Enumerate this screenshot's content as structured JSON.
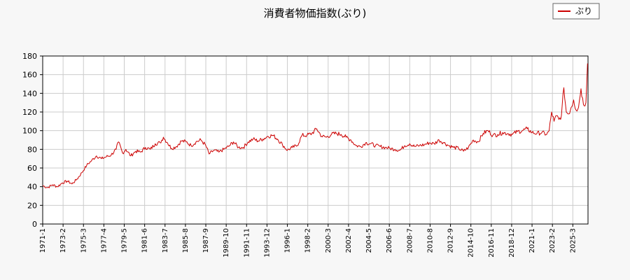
{
  "chart_data": {
    "type": "line",
    "title": "消費者物価指数(ぶり)",
    "xlabel": "",
    "ylabel": "",
    "ylim": [
      0,
      180
    ],
    "y_ticks": [
      0,
      20,
      40,
      60,
      80,
      100,
      120,
      140,
      160,
      180
    ],
    "x_ticks": [
      "1971-1",
      "1973-2",
      "1975-3",
      "1977-4",
      "1979-5",
      "1981-6",
      "1983-7",
      "1985-8",
      "1987-9",
      "1989-10",
      "1991-11",
      "1993-12",
      "1996-1",
      "1998-2",
      "2000-3",
      "2002-4",
      "2004-5",
      "2006-6",
      "2008-7",
      "2010-8",
      "2012-9",
      "2014-10",
      "2016-11",
      "2018-12",
      "2021-1",
      "2023-2",
      "2025-3"
    ],
    "grid": true,
    "legend_position": "top-right",
    "series": [
      {
        "name": "ぶり",
        "color": "#cc0000",
        "points": [
          [
            "1971-1",
            41
          ],
          [
            "1971-7",
            39
          ],
          [
            "1972-1",
            42
          ],
          [
            "1972-7",
            40
          ],
          [
            "1973-1",
            44
          ],
          [
            "1973-7",
            46
          ],
          [
            "1974-1",
            43
          ],
          [
            "1974-7",
            48
          ],
          [
            "1975-1",
            55
          ],
          [
            "1975-7",
            63
          ],
          [
            "1976-1",
            68
          ],
          [
            "1976-7",
            73
          ],
          [
            "1977-1",
            70
          ],
          [
            "1977-7",
            72
          ],
          [
            "1978-1",
            74
          ],
          [
            "1978-7",
            80
          ],
          [
            "1978-10",
            88
          ],
          [
            "1979-3",
            76
          ],
          [
            "1979-7",
            80
          ],
          [
            "1980-1",
            73
          ],
          [
            "1980-7",
            78
          ],
          [
            "1981-1",
            77
          ],
          [
            "1981-7",
            82
          ],
          [
            "1982-1",
            80
          ],
          [
            "1982-7",
            86
          ],
          [
            "1983-1",
            87
          ],
          [
            "1983-5",
            93
          ],
          [
            "1983-10",
            87
          ],
          [
            "1984-3",
            81
          ],
          [
            "1984-9",
            83
          ],
          [
            "1985-3",
            89
          ],
          [
            "1985-9",
            88
          ],
          [
            "1986-3",
            84
          ],
          [
            "1986-9",
            88
          ],
          [
            "1987-3",
            90
          ],
          [
            "1987-9",
            84
          ],
          [
            "1988-1",
            75
          ],
          [
            "1988-7",
            79
          ],
          [
            "1989-1",
            77
          ],
          [
            "1989-7",
            80
          ],
          [
            "1990-1",
            83
          ],
          [
            "1990-7",
            88
          ],
          [
            "1991-1",
            82
          ],
          [
            "1991-7",
            82
          ],
          [
            "1992-1",
            88
          ],
          [
            "1992-7",
            91
          ],
          [
            "1993-1",
            89
          ],
          [
            "1993-7",
            91
          ],
          [
            "1994-1",
            94
          ],
          [
            "1994-7",
            95
          ],
          [
            "1995-1",
            91
          ],
          [
            "1995-7",
            85
          ],
          [
            "1996-1",
            79
          ],
          [
            "1996-7",
            82
          ],
          [
            "1997-1",
            84
          ],
          [
            "1997-7",
            95
          ],
          [
            "1998-1",
            95
          ],
          [
            "1998-7",
            97
          ],
          [
            "1999-1",
            102
          ],
          [
            "1999-7",
            94
          ],
          [
            "2000-1",
            93
          ],
          [
            "2000-7",
            96
          ],
          [
            "2001-1",
            97
          ],
          [
            "2001-7",
            96
          ],
          [
            "2002-1",
            93
          ],
          [
            "2002-7",
            90
          ],
          [
            "2003-1",
            84
          ],
          [
            "2003-7",
            83
          ],
          [
            "2004-1",
            87
          ],
          [
            "2004-7",
            86
          ],
          [
            "2005-1",
            84
          ],
          [
            "2005-7",
            83
          ],
          [
            "2006-1",
            82
          ],
          [
            "2006-7",
            81
          ],
          [
            "2007-1",
            80
          ],
          [
            "2007-7",
            79
          ],
          [
            "2008-1",
            84
          ],
          [
            "2008-7",
            86
          ],
          [
            "2009-1",
            83
          ],
          [
            "2009-7",
            84
          ],
          [
            "2010-1",
            85
          ],
          [
            "2010-7",
            87
          ],
          [
            "2011-1",
            86
          ],
          [
            "2011-7",
            90
          ],
          [
            "2012-1",
            87
          ],
          [
            "2012-7",
            84
          ],
          [
            "2013-1",
            82
          ],
          [
            "2013-7",
            81
          ],
          [
            "2014-1",
            78
          ],
          [
            "2014-7",
            82
          ],
          [
            "2015-1",
            90
          ],
          [
            "2015-7",
            88
          ],
          [
            "2016-1",
            97
          ],
          [
            "2016-7",
            100
          ],
          [
            "2017-1",
            95
          ],
          [
            "2017-7",
            96
          ],
          [
            "2018-1",
            98
          ],
          [
            "2018-7",
            97
          ],
          [
            "2019-1",
            96
          ],
          [
            "2019-7",
            99
          ],
          [
            "2020-1",
            100
          ],
          [
            "2020-7",
            102
          ],
          [
            "2021-1",
            98
          ],
          [
            "2021-7",
            97
          ],
          [
            "2022-1",
            98
          ],
          [
            "2022-7",
            96
          ],
          [
            "2022-10",
            100
          ],
          [
            "2023-1",
            120
          ],
          [
            "2023-4",
            110
          ],
          [
            "2023-7",
            116
          ],
          [
            "2023-10",
            112
          ],
          [
            "2024-1",
            116
          ],
          [
            "2024-4",
            146
          ],
          [
            "2024-7",
            120
          ],
          [
            "2024-10",
            118
          ],
          [
            "2025-1",
            125
          ],
          [
            "2025-4",
            133
          ],
          [
            "2025-7",
            122
          ],
          [
            "2025-10",
            125
          ],
          [
            "2026-1",
            145
          ],
          [
            "2026-4",
            128
          ],
          [
            "2026-7",
            130
          ],
          [
            "2026-9",
            172
          ]
        ]
      }
    ]
  }
}
